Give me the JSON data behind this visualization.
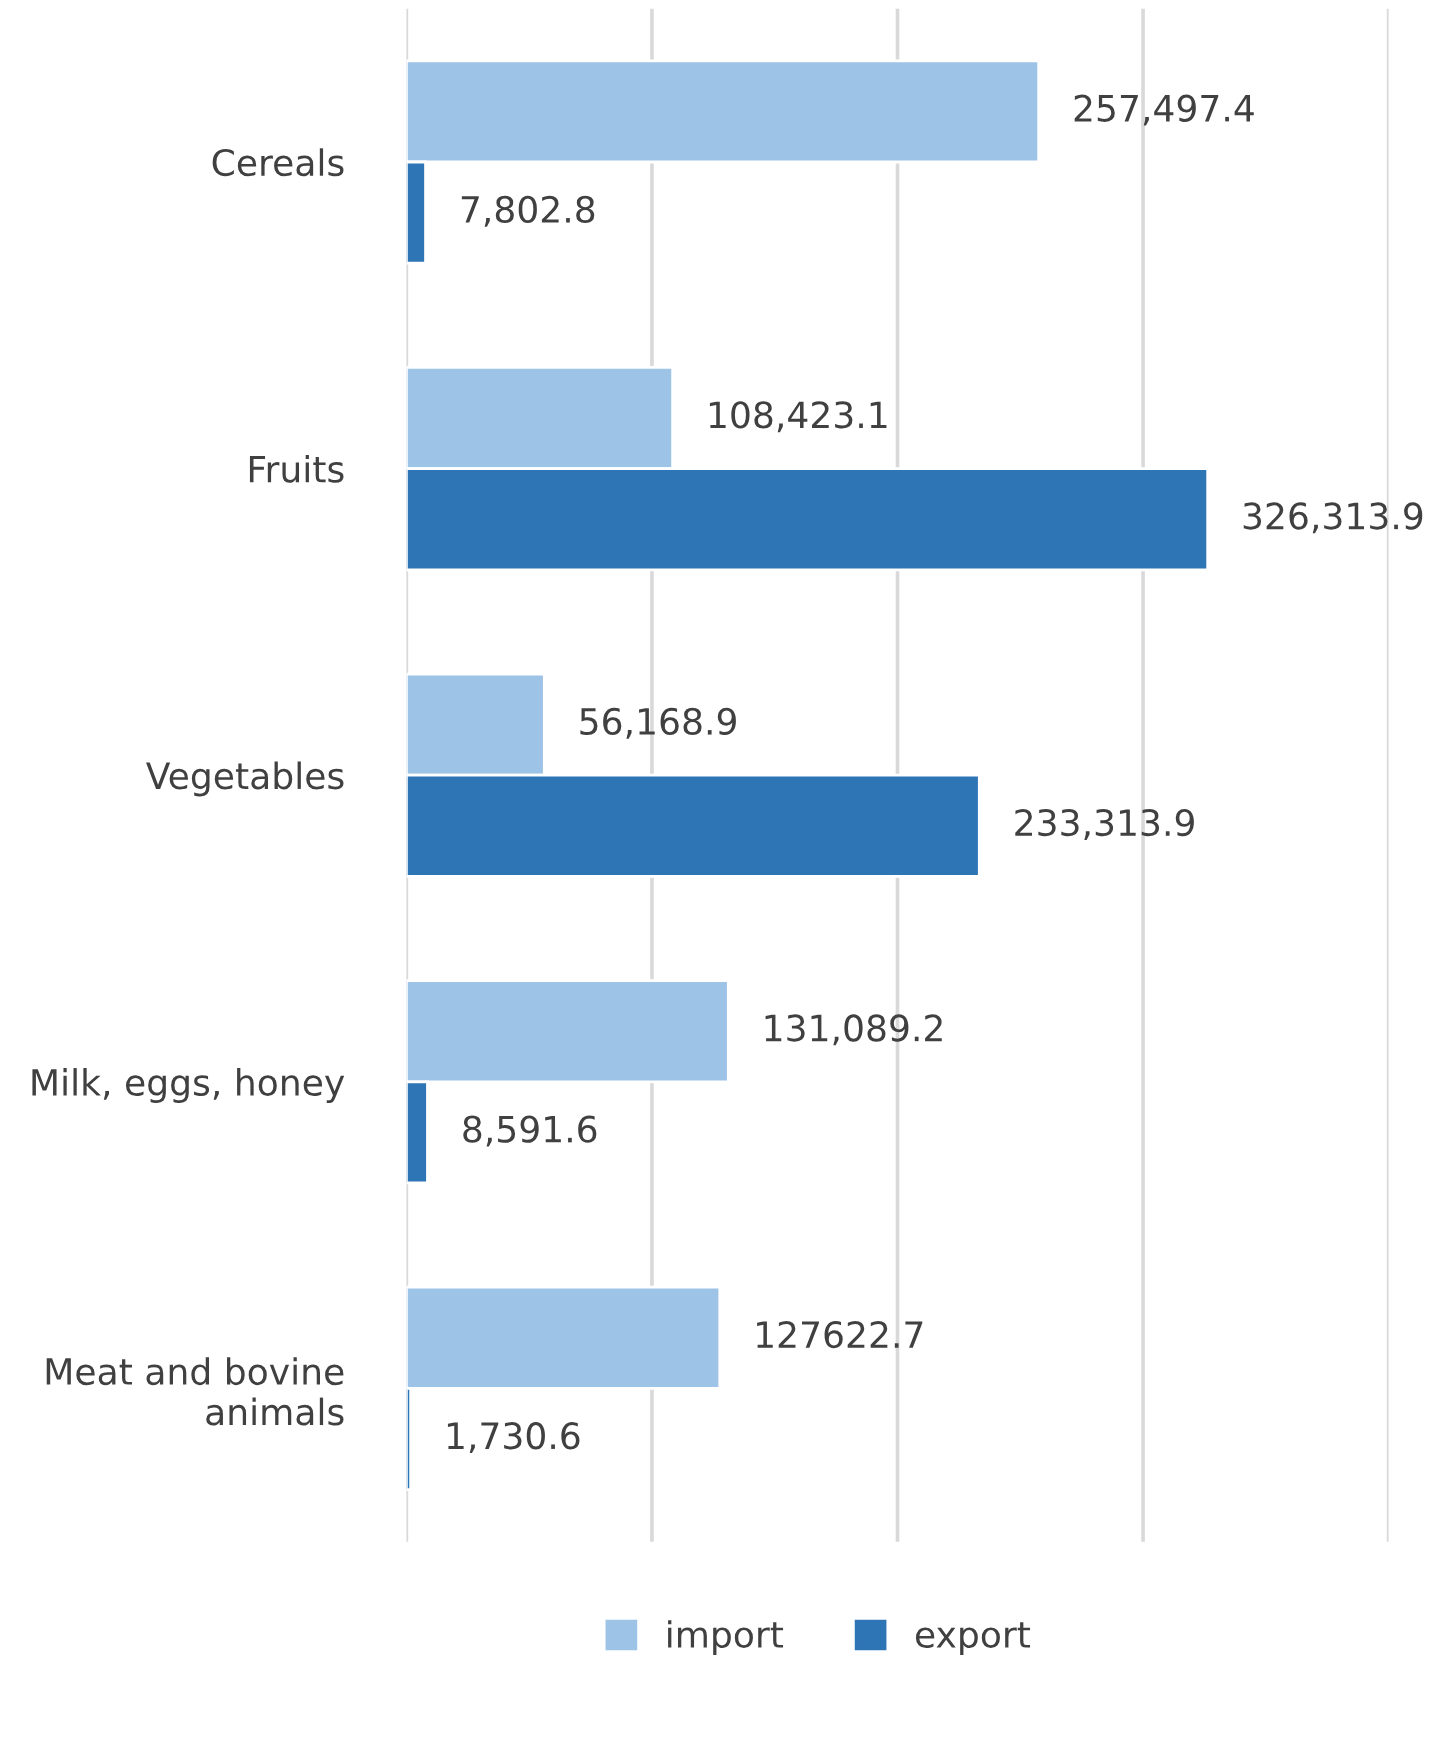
{
  "chart_data": {
    "type": "bar",
    "orientation": "horizontal",
    "categories": [
      "Cereals",
      "Fruits",
      "Vegetables",
      "Milk, eggs, honey",
      "Meat and bovine animals"
    ],
    "series": [
      {
        "name": "import",
        "color": "#9dc3e6",
        "values": [
          257497.4,
          108423.1,
          56168.9,
          131089.2,
          127622.7
        ],
        "value_labels": [
          "257,497.4",
          "108,423.1",
          "56,168.9",
          "131,089.2",
          "127622.7"
        ]
      },
      {
        "name": "export",
        "color": "#2e75b6",
        "values": [
          7802.8,
          326313.9,
          233313.9,
          8591.6,
          1730.6
        ],
        "value_labels": [
          "7,802.8",
          "326,313.9",
          "233,313.9",
          "8,591.6",
          "1,730.6"
        ]
      }
    ],
    "xlim": [
      0,
      400000
    ],
    "xticks": [
      {
        "value": 0,
        "label": null
      },
      {
        "value": 100000,
        "label": null
      },
      {
        "value": 200000,
        "label": null
      },
      {
        "value": 300000,
        "label": null
      },
      {
        "value": 400000,
        "label": null
      }
    ],
    "grid": "x",
    "legend": "bottom",
    "tick_labels": "y"
  }
}
